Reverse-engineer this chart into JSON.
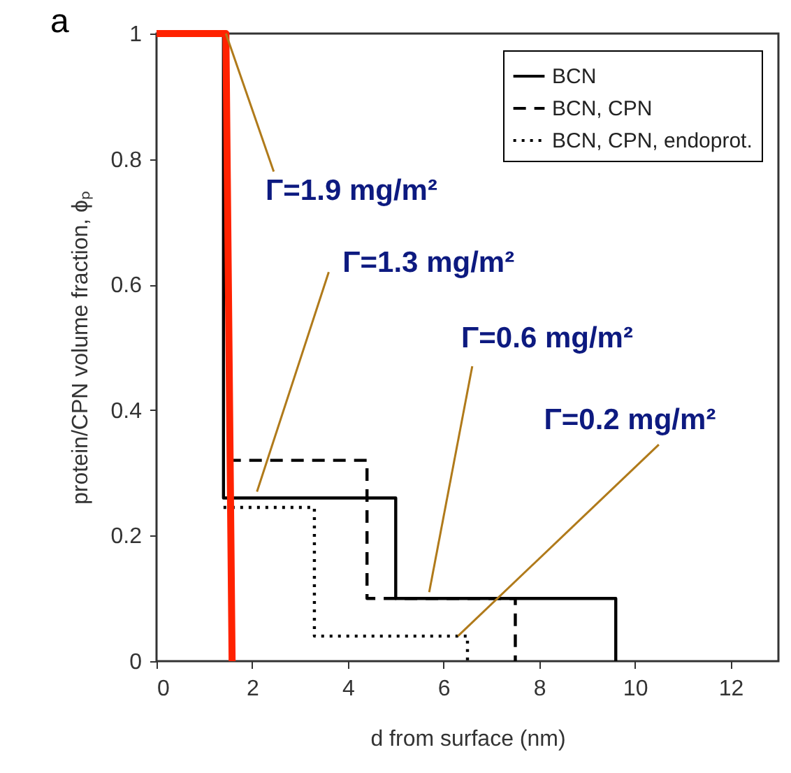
{
  "chart_data": {
    "type": "line",
    "xlabel": "d from surface (nm)",
    "ylabel": "protein/CPN volume fraction, ϕₚ",
    "xlim": [
      0,
      13
    ],
    "xticks": [
      0,
      2,
      4,
      6,
      8,
      10,
      12
    ],
    "ylim": [
      0,
      1
    ],
    "yticks": [
      0,
      0.2,
      0.4,
      0.6,
      0.8,
      1
    ],
    "grid": false,
    "legend": "top right",
    "marker": "none",
    "series": [
      {
        "name": "BCN",
        "color": "#000000",
        "line_style": "solid",
        "x": [
          0,
          1.4,
          1.4,
          5.0,
          5.0,
          9.6,
          9.6
        ],
        "values": [
          1,
          1,
          0.26,
          0.26,
          0.1,
          0.1,
          0
        ]
      },
      {
        "name": "BCN, CPN",
        "color": "#000000",
        "line_style": "dashed",
        "x": [
          1.5,
          4.4,
          4.4,
          7.5,
          7.5
        ],
        "values": [
          0.32,
          0.32,
          0.1,
          0.1,
          0
        ]
      },
      {
        "name": "BCN, CPN, endoprot.",
        "color": "#000000",
        "line_style": "dotted",
        "x": [
          1.4,
          3.3,
          3.3,
          6.5,
          6.5
        ],
        "values": [
          0.245,
          0.245,
          0.04,
          0.04,
          0
        ]
      },
      {
        "color": "#ff2200",
        "line_style": "solid",
        "x": [
          0,
          1.45,
          1.58
        ],
        "values": [
          1,
          1,
          0
        ]
      }
    ],
    "annotations": [
      "a",
      {
        "text": "Γ=1.9 mg/m²",
        "x": 1.45,
        "y": 1.0
      },
      {
        "text": "Γ=1.3 mg/m²",
        "x": 2.1,
        "y": 0.27
      },
      {
        "text": "Γ=0.6 mg/m²",
        "x": 5.7,
        "y": 0.11
      },
      {
        "text": "Γ=0.2 mg/m²",
        "x": 6.3,
        "y": 0.04
      }
    ]
  }
}
